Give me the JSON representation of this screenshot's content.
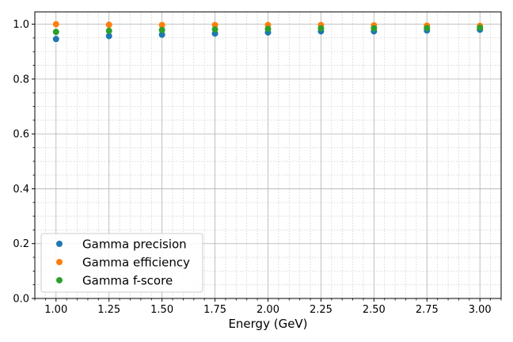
{
  "chart_data": {
    "type": "scatter",
    "title": "",
    "xlabel": "Energy (GeV)",
    "ylabel": "",
    "xlim": [
      0.9,
      3.1
    ],
    "ylim": [
      0.0,
      1.045
    ],
    "x": [
      1.0,
      1.25,
      1.5,
      1.75,
      2.0,
      2.25,
      2.5,
      2.75,
      3.0
    ],
    "x_ticks": [
      "1.00",
      "1.25",
      "1.50",
      "1.75",
      "2.00",
      "2.25",
      "2.50",
      "2.75",
      "3.00"
    ],
    "x_tick_values": [
      1.0,
      1.25,
      1.5,
      1.75,
      2.0,
      2.25,
      2.5,
      2.75,
      3.0
    ],
    "y_ticks": [
      "0.0",
      "0.2",
      "0.4",
      "0.6",
      "0.8",
      "1.0"
    ],
    "y_tick_values": [
      0.0,
      0.2,
      0.4,
      0.6,
      0.8,
      1.0
    ],
    "grid": true,
    "minor_grid": true,
    "legend_position": "lower-left",
    "series": [
      {
        "name": "Gamma precision",
        "color": "#1f77b4",
        "values": [
          0.946,
          0.957,
          0.962,
          0.966,
          0.97,
          0.974,
          0.974,
          0.977,
          0.98
        ]
      },
      {
        "name": "Gamma efficiency",
        "color": "#ff7f0e",
        "values": [
          1.0,
          0.998,
          0.997,
          0.997,
          0.997,
          0.997,
          0.996,
          0.995,
          0.994
        ]
      },
      {
        "name": "Gamma f-score",
        "color": "#2ca02c",
        "values": [
          0.972,
          0.976,
          0.979,
          0.981,
          0.983,
          0.985,
          0.985,
          0.986,
          0.987
        ]
      }
    ]
  }
}
